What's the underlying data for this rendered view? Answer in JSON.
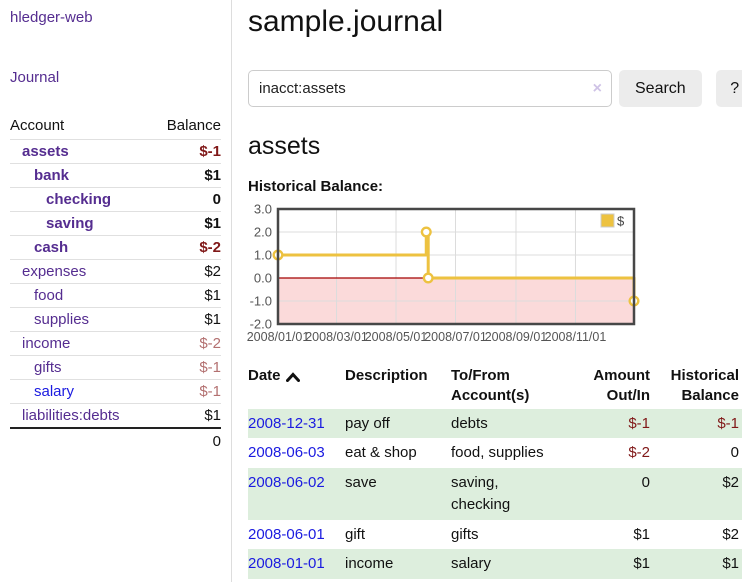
{
  "sidebar": {
    "app_title": "hledger-web",
    "nav_journal": "Journal",
    "accounts": {
      "header_account": "Account",
      "header_balance": "Balance",
      "rows": [
        {
          "name": "assets",
          "balance": "$-1"
        },
        {
          "name": "bank",
          "balance": "$1"
        },
        {
          "name": "checking",
          "balance": "0"
        },
        {
          "name": "saving",
          "balance": "$1"
        },
        {
          "name": "cash",
          "balance": "$-2"
        },
        {
          "name": "expenses",
          "balance": "$2"
        },
        {
          "name": "food",
          "balance": "$1"
        },
        {
          "name": "supplies",
          "balance": "$1"
        },
        {
          "name": "income",
          "balance": "$-2"
        },
        {
          "name": "gifts",
          "balance": "$-1"
        },
        {
          "name": "salary",
          "balance": "$-1"
        },
        {
          "name": "liabilities:debts",
          "balance": "$1"
        }
      ],
      "total": "0"
    }
  },
  "main": {
    "title": "sample.journal",
    "search": {
      "value": "inacct:assets",
      "clear_icon": "×",
      "button": "Search",
      "help": "?"
    },
    "heading": "assets",
    "chart_title": "Historical Balance:"
  },
  "chart_data": {
    "type": "line",
    "title": "Historical Balance:",
    "legend": {
      "label": "$",
      "position": "top-right"
    },
    "ylim": [
      -2,
      3
    ],
    "x_range_days": [
      0,
      365
    ],
    "grid": true,
    "negative_region_fill": "#fbdada",
    "zero_line_color": "#a40000",
    "y_ticks": [
      {
        "label": "3.0",
        "value": 3
      },
      {
        "label": "2.0",
        "value": 2
      },
      {
        "label": "1.0",
        "value": 1
      },
      {
        "label": "0.0",
        "value": 0
      },
      {
        "label": "-1.0",
        "value": -1
      },
      {
        "label": "-2.0",
        "value": -2
      }
    ],
    "x_ticks": [
      {
        "label": "2008/01/01",
        "day": 0
      },
      {
        "label": "2008/03/01",
        "day": 60
      },
      {
        "label": "2008/05/01",
        "day": 121
      },
      {
        "label": "2008/07/01",
        "day": 182
      },
      {
        "label": "2008/09/01",
        "day": 244
      },
      {
        "label": "2008/11/01",
        "day": 305
      }
    ],
    "series": [
      {
        "name": "$",
        "color": "#edc240",
        "line_days_values": [
          [
            0,
            1
          ],
          [
            152,
            1
          ],
          [
            152,
            2
          ],
          [
            154,
            2
          ],
          [
            154,
            0
          ],
          [
            365,
            0
          ],
          [
            365,
            -1
          ]
        ],
        "markers_days_values": [
          [
            0,
            1
          ],
          [
            152,
            2
          ],
          [
            154,
            0
          ],
          [
            365,
            -1
          ]
        ]
      }
    ]
  },
  "register": {
    "headers": {
      "date": "Date",
      "description": "Description",
      "tofrom": "To/From Account(s)",
      "amount": "Amount Out/In",
      "balance": "Historical Balance"
    },
    "rows": [
      {
        "date": "2008-12-31",
        "description": "pay off",
        "accounts": "debts",
        "amount": "$-1",
        "balance": "$-1"
      },
      {
        "date": "2008-06-03",
        "description": "eat & shop",
        "accounts": "food, supplies",
        "amount": "$-2",
        "balance": "0"
      },
      {
        "date": "2008-06-02",
        "description": "save",
        "accounts": "saving, checking",
        "amount": "0",
        "balance": "$2"
      },
      {
        "date": "2008-06-01",
        "description": "gift",
        "accounts": "gifts",
        "amount": "$1",
        "balance": "$2"
      },
      {
        "date": "2008-01-01",
        "description": "income",
        "accounts": "salary",
        "amount": "$1",
        "balance": "$1"
      }
    ]
  }
}
